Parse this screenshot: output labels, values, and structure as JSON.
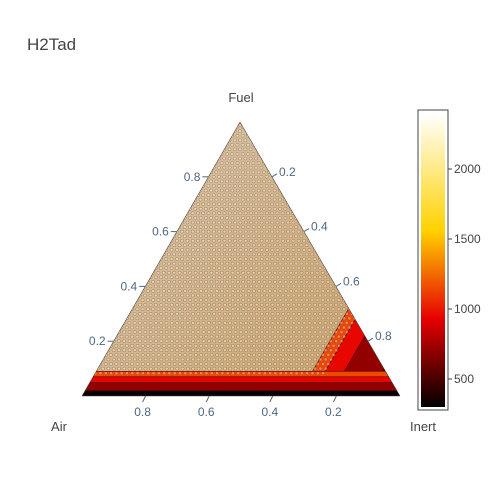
{
  "chart_data": {
    "type": "ternary-contour",
    "title": "H2Tad",
    "axes": {
      "a": {
        "label": "Fuel",
        "ticks": [
          0.2,
          0.4,
          0.6,
          0.8
        ],
        "tick_labels": [
          "0.2",
          "0.4",
          "0.6",
          "0.8"
        ]
      },
      "b": {
        "label": "Air",
        "ticks": [
          0.2,
          0.4,
          0.6,
          0.8
        ],
        "tick_labels": [
          "0.2",
          "0.4",
          "0.6",
          "0.8"
        ]
      },
      "c": {
        "label": "Inert",
        "ticks": [
          0.2,
          0.4,
          0.6,
          0.8
        ],
        "tick_labels": [
          "0.2",
          "0.4",
          "0.6",
          "0.8"
        ]
      }
    },
    "colorbar": {
      "ticks": [
        500,
        1000,
        1500,
        2000
      ],
      "tick_labels": [
        "500",
        "1000",
        "1500",
        "2000"
      ],
      "range": [
        300,
        2400
      ],
      "colorscale": "Hot"
    },
    "contour_bands": [
      {
        "name": "outer",
        "inert_min": 0.9,
        "inert_max": 1.0,
        "value": 320
      },
      {
        "name": "band-1",
        "inert_min": 0.78,
        "inert_max": 0.9,
        "value": 700
      },
      {
        "name": "band-2",
        "inert_min": 0.72,
        "inert_max": 0.78,
        "value": 950
      },
      {
        "name": "band-3",
        "inert_min": 0.68,
        "inert_max": 0.72,
        "value": 1150
      },
      {
        "name": "core",
        "inert_min": 0.0,
        "inert_max": 0.68,
        "value": 1950
      }
    ],
    "air_bands": [
      {
        "name": "low-fuel-1",
        "fuel_min": 0.0,
        "fuel_max": 0.02,
        "value": 320
      },
      {
        "name": "low-fuel-2",
        "fuel_min": 0.02,
        "fuel_max": 0.05,
        "value": 700
      },
      {
        "name": "low-fuel-3",
        "fuel_min": 0.05,
        "fuel_max": 0.07,
        "value": 950
      },
      {
        "name": "low-fuel-4",
        "fuel_min": 0.07,
        "fuel_max": 0.09,
        "value": 1150
      }
    ],
    "markers": {
      "symbol": "circle",
      "color": "rgba(255,255,255,0.35)",
      "outline": "rgba(120,30,30,0.7)"
    }
  }
}
